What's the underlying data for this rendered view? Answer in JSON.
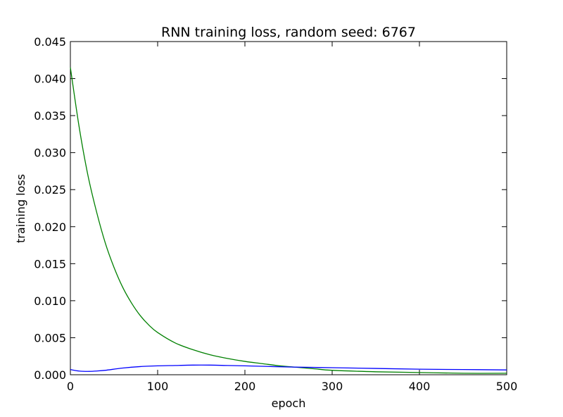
{
  "chart_data": {
    "type": "line",
    "title": "RNN training loss, random seed: 6767",
    "xlabel": "epoch",
    "ylabel": "training loss",
    "xlim": [
      0,
      500
    ],
    "ylim": [
      0,
      0.045
    ],
    "xticks": [
      0,
      100,
      200,
      300,
      400,
      500
    ],
    "xtick_labels": [
      "0",
      "100",
      "200",
      "300",
      "400",
      "500"
    ],
    "yticks": [
      0,
      0.005,
      0.01,
      0.015,
      0.02,
      0.025,
      0.03,
      0.035,
      0.04,
      0.045
    ],
    "ytick_labels": [
      "0.000",
      "0.005",
      "0.010",
      "0.015",
      "0.020",
      "0.025",
      "0.030",
      "0.035",
      "0.040",
      "0.045"
    ],
    "grid": false,
    "series": [
      {
        "color": "#008000",
        "x": [
          0,
          10,
          20,
          30,
          40,
          50,
          60,
          70,
          80,
          90,
          100,
          120,
          140,
          160,
          180,
          200,
          220,
          240,
          260,
          280,
          300,
          350,
          400,
          450,
          500
        ],
        "y": [
          0.0415,
          0.0335,
          0.027,
          0.022,
          0.0178,
          0.0145,
          0.0118,
          0.0097,
          0.008,
          0.0067,
          0.0057,
          0.0043,
          0.0034,
          0.0027,
          0.0022,
          0.0018,
          0.0015,
          0.0012,
          0.001,
          0.0008,
          0.0006,
          0.0004,
          0.0003,
          0.0002,
          0.0002
        ]
      },
      {
        "color": "#0000ff",
        "x": [
          0,
          10,
          20,
          30,
          40,
          60,
          80,
          100,
          120,
          140,
          160,
          180,
          200,
          250,
          300,
          350,
          400,
          450,
          500
        ],
        "y": [
          0.0007,
          0.0005,
          0.00045,
          0.0005,
          0.0006,
          0.0009,
          0.0011,
          0.0012,
          0.00125,
          0.0013,
          0.0013,
          0.00125,
          0.0012,
          0.00105,
          0.00095,
          0.00085,
          0.00075,
          0.0007,
          0.00065
        ]
      }
    ]
  }
}
